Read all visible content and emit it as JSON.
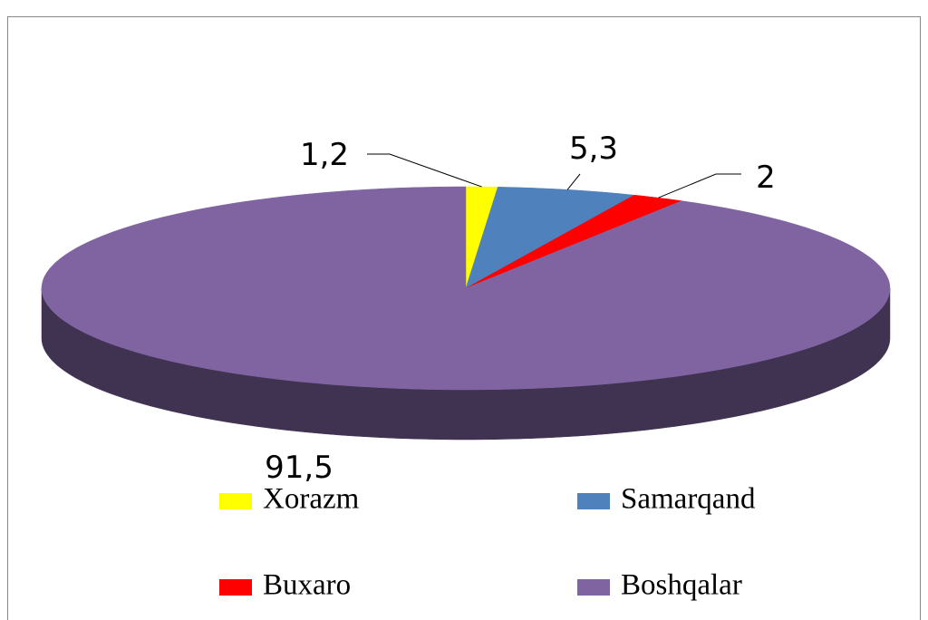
{
  "chart_data": {
    "type": "pie",
    "categories": [
      "Xorazm",
      "Samarqand",
      "Buxaro",
      "Boshqalar"
    ],
    "values": [
      1.2,
      5.3,
      2,
      91.5
    ],
    "value_labels": [
      "1,2",
      "5,3",
      "2",
      "91,5"
    ],
    "colors": [
      "#ffff00",
      "#4f81bd",
      "#ff0000",
      "#8064a2"
    ],
    "legend": "bottom"
  }
}
